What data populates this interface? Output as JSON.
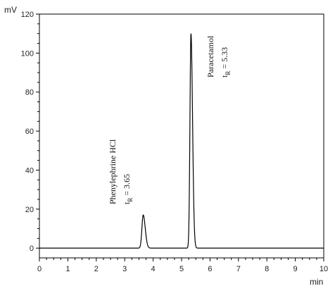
{
  "chart_data": {
    "type": "line",
    "title": "",
    "xlabel": "min",
    "ylabel": "mV",
    "xlim": [
      0,
      10
    ],
    "ylim": [
      -5,
      120
    ],
    "x_ticks": [
      "0",
      "1",
      "2",
      "3",
      "4",
      "5",
      "6",
      "7",
      "8",
      "9",
      "10"
    ],
    "y_ticks": [
      "0",
      "20",
      "40",
      "60",
      "80",
      "100",
      "120"
    ],
    "grid": false,
    "line_color": "#000000",
    "baseline": 0,
    "peaks": [
      {
        "name": "Phenylephrine HCl",
        "retention_label": "t",
        "retention_sub": "R",
        "retention_value": " = 3.65",
        "x": 3.65,
        "height": 17
      },
      {
        "name": "Paracetamol",
        "retention_label": "t",
        "retention_sub": "R",
        "retention_value": " = 5.33",
        "x": 5.33,
        "height": 110
      }
    ]
  }
}
